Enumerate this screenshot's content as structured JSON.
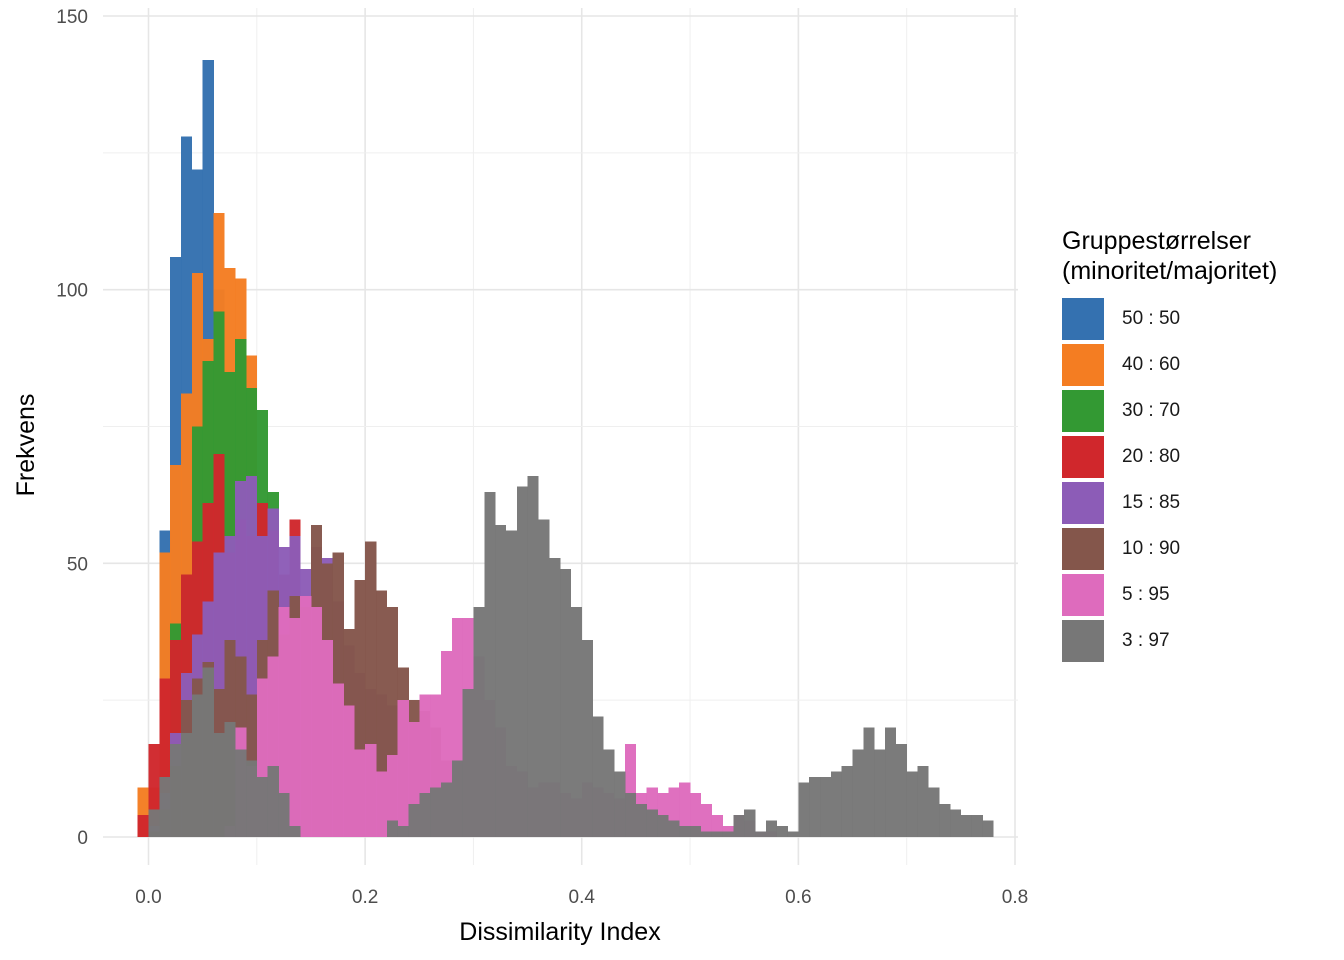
{
  "chart_data": {
    "type": "histogram",
    "xlabel": "Dissimilarity Index",
    "ylabel": "Frekvens",
    "x_ticks": [
      0.0,
      0.2,
      0.4,
      0.6,
      0.8
    ],
    "x_tick_labels": [
      "0.0",
      "0.2",
      "0.4",
      "0.6",
      "0.8"
    ],
    "y_ticks": [
      0,
      50,
      100,
      150
    ],
    "y_tick_labels": [
      "0",
      "50",
      "100",
      "150"
    ],
    "xlim": [
      -0.04,
      0.8
    ],
    "ylim": [
      0,
      150
    ],
    "bin_width": 0.01,
    "grid": true,
    "legend_position": "right",
    "legend_title": "Gruppestørrelser\n(minoritet/majoritet)",
    "series": [
      {
        "name": "50 : 50",
        "color": "#3471b0",
        "bins": [
          [
            0.0,
            0
          ],
          [
            0.01,
            56
          ],
          [
            0.02,
            106
          ],
          [
            0.03,
            128
          ],
          [
            0.04,
            122
          ],
          [
            0.05,
            142
          ],
          [
            0.06,
            100
          ],
          [
            0.07,
            58
          ],
          [
            0.08,
            20
          ],
          [
            0.09,
            5
          ],
          [
            0.1,
            1
          ]
        ]
      },
      {
        "name": "40 : 60",
        "color": "#f47d22",
        "bins": [
          [
            -0.01,
            9
          ],
          [
            0.0,
            9
          ],
          [
            0.01,
            52
          ],
          [
            0.02,
            68
          ],
          [
            0.03,
            81
          ],
          [
            0.04,
            103
          ],
          [
            0.05,
            91
          ],
          [
            0.06,
            114
          ],
          [
            0.07,
            104
          ],
          [
            0.08,
            102
          ],
          [
            0.09,
            88
          ],
          [
            0.1,
            55
          ],
          [
            0.11,
            42
          ],
          [
            0.12,
            20
          ],
          [
            0.13,
            8
          ]
        ]
      },
      {
        "name": "30 : 70",
        "color": "#339933",
        "bins": [
          [
            0.0,
            4
          ],
          [
            0.01,
            10
          ],
          [
            0.02,
            39
          ],
          [
            0.03,
            48
          ],
          [
            0.04,
            75
          ],
          [
            0.05,
            87
          ],
          [
            0.06,
            96
          ],
          [
            0.07,
            85
          ],
          [
            0.08,
            91
          ],
          [
            0.09,
            82
          ],
          [
            0.1,
            78
          ],
          [
            0.11,
            63
          ],
          [
            0.12,
            41
          ],
          [
            0.13,
            31
          ],
          [
            0.14,
            18
          ]
        ]
      },
      {
        "name": "20 : 80",
        "color": "#d0272c",
        "bins": [
          [
            -0.01,
            4
          ],
          [
            0.0,
            17
          ],
          [
            0.01,
            29
          ],
          [
            0.02,
            36
          ],
          [
            0.03,
            48
          ],
          [
            0.04,
            54
          ],
          [
            0.05,
            61
          ],
          [
            0.06,
            70
          ],
          [
            0.07,
            52
          ],
          [
            0.08,
            58
          ],
          [
            0.09,
            55
          ],
          [
            0.1,
            61
          ],
          [
            0.11,
            56
          ],
          [
            0.12,
            48
          ],
          [
            0.13,
            58
          ],
          [
            0.14,
            32
          ],
          [
            0.15,
            20
          ]
        ]
      },
      {
        "name": "15 : 85",
        "color": "#8c5cb7",
        "bins": [
          [
            0.0,
            2
          ],
          [
            0.01,
            8
          ],
          [
            0.02,
            19
          ],
          [
            0.03,
            30
          ],
          [
            0.04,
            37
          ],
          [
            0.05,
            43
          ],
          [
            0.06,
            52
          ],
          [
            0.07,
            55
          ],
          [
            0.08,
            65
          ],
          [
            0.09,
            66
          ],
          [
            0.1,
            55
          ],
          [
            0.11,
            60
          ],
          [
            0.12,
            53
          ],
          [
            0.13,
            55
          ],
          [
            0.14,
            49
          ],
          [
            0.15,
            53
          ],
          [
            0.16,
            51
          ],
          [
            0.17,
            43
          ],
          [
            0.18,
            35
          ],
          [
            0.19,
            30
          ],
          [
            0.2,
            27
          ],
          [
            0.21,
            26
          ],
          [
            0.22,
            24
          ],
          [
            0.23,
            22
          ]
        ]
      },
      {
        "name": "10 : 90",
        "color": "#84564b",
        "bins": [
          [
            0.0,
            1
          ],
          [
            0.01,
            5
          ],
          [
            0.02,
            13
          ],
          [
            0.03,
            25
          ],
          [
            0.04,
            29
          ],
          [
            0.05,
            32
          ],
          [
            0.06,
            27
          ],
          [
            0.07,
            36
          ],
          [
            0.08,
            33
          ],
          [
            0.09,
            26
          ],
          [
            0.1,
            36
          ],
          [
            0.11,
            45
          ],
          [
            0.12,
            37
          ],
          [
            0.13,
            44
          ],
          [
            0.14,
            42
          ],
          [
            0.15,
            57
          ],
          [
            0.16,
            50
          ],
          [
            0.17,
            52
          ],
          [
            0.18,
            38
          ],
          [
            0.19,
            47
          ],
          [
            0.2,
            54
          ],
          [
            0.21,
            45
          ],
          [
            0.22,
            42
          ],
          [
            0.23,
            31
          ],
          [
            0.24,
            25
          ],
          [
            0.25,
            23
          ],
          [
            0.26,
            20
          ],
          [
            0.27,
            14
          ],
          [
            0.28,
            9
          ],
          [
            0.29,
            5
          ],
          [
            0.3,
            3
          ]
        ]
      },
      {
        "name": "5 : 95",
        "color": "#de6bbd",
        "bins": [
          [
            0.07,
            2
          ],
          [
            0.08,
            20
          ],
          [
            0.09,
            13
          ],
          [
            0.1,
            29
          ],
          [
            0.11,
            33
          ],
          [
            0.12,
            42
          ],
          [
            0.13,
            40
          ],
          [
            0.14,
            44
          ],
          [
            0.15,
            42
          ],
          [
            0.16,
            36
          ],
          [
            0.17,
            28
          ],
          [
            0.18,
            24
          ],
          [
            0.19,
            16
          ],
          [
            0.2,
            17
          ],
          [
            0.21,
            12
          ],
          [
            0.22,
            15
          ],
          [
            0.23,
            25
          ],
          [
            0.24,
            21
          ],
          [
            0.25,
            26
          ],
          [
            0.26,
            26
          ],
          [
            0.27,
            34
          ],
          [
            0.28,
            40
          ],
          [
            0.29,
            40
          ],
          [
            0.3,
            33
          ],
          [
            0.31,
            25
          ],
          [
            0.32,
            20
          ],
          [
            0.33,
            13
          ],
          [
            0.34,
            12
          ],
          [
            0.35,
            9
          ],
          [
            0.36,
            10
          ],
          [
            0.37,
            10
          ],
          [
            0.38,
            8
          ],
          [
            0.39,
            7
          ],
          [
            0.4,
            10
          ],
          [
            0.41,
            9
          ],
          [
            0.42,
            8
          ],
          [
            0.43,
            7
          ],
          [
            0.44,
            17
          ],
          [
            0.45,
            8
          ],
          [
            0.46,
            9
          ],
          [
            0.47,
            8
          ],
          [
            0.48,
            9
          ],
          [
            0.49,
            10
          ],
          [
            0.5,
            8
          ],
          [
            0.51,
            6
          ],
          [
            0.52,
            4
          ],
          [
            0.53,
            2
          ],
          [
            0.54,
            4
          ],
          [
            0.55,
            3
          ],
          [
            0.56,
            1
          ],
          [
            0.57,
            1
          ]
        ]
      },
      {
        "name": "3 : 97",
        "color": "#777777",
        "bins": [
          [
            0.0,
            5
          ],
          [
            0.01,
            11
          ],
          [
            0.02,
            17
          ],
          [
            0.03,
            19
          ],
          [
            0.04,
            26
          ],
          [
            0.05,
            31
          ],
          [
            0.06,
            19
          ],
          [
            0.07,
            21
          ],
          [
            0.08,
            16
          ],
          [
            0.09,
            14
          ],
          [
            0.1,
            11
          ],
          [
            0.11,
            13
          ],
          [
            0.12,
            8
          ],
          [
            0.13,
            2
          ],
          [
            0.22,
            3
          ],
          [
            0.23,
            2
          ],
          [
            0.24,
            6
          ],
          [
            0.25,
            8
          ],
          [
            0.26,
            9
          ],
          [
            0.27,
            10
          ],
          [
            0.28,
            14
          ],
          [
            0.29,
            27
          ],
          [
            0.3,
            42
          ],
          [
            0.31,
            63
          ],
          [
            0.32,
            57
          ],
          [
            0.33,
            56
          ],
          [
            0.34,
            64
          ],
          [
            0.35,
            66
          ],
          [
            0.36,
            58
          ],
          [
            0.37,
            51
          ],
          [
            0.38,
            49
          ],
          [
            0.39,
            42
          ],
          [
            0.4,
            36
          ],
          [
            0.41,
            22
          ],
          [
            0.42,
            16
          ],
          [
            0.43,
            12
          ],
          [
            0.44,
            8
          ],
          [
            0.45,
            6
          ],
          [
            0.46,
            5
          ],
          [
            0.47,
            4
          ],
          [
            0.48,
            3
          ],
          [
            0.49,
            2
          ],
          [
            0.5,
            2
          ],
          [
            0.51,
            1
          ],
          [
            0.52,
            1
          ],
          [
            0.53,
            1
          ],
          [
            0.54,
            4
          ],
          [
            0.55,
            5
          ],
          [
            0.56,
            1
          ],
          [
            0.57,
            3
          ],
          [
            0.58,
            2
          ],
          [
            0.59,
            1
          ],
          [
            0.6,
            10
          ],
          [
            0.61,
            11
          ],
          [
            0.62,
            11
          ],
          [
            0.63,
            12
          ],
          [
            0.64,
            13
          ],
          [
            0.65,
            16
          ],
          [
            0.66,
            20
          ],
          [
            0.67,
            16
          ],
          [
            0.68,
            20
          ],
          [
            0.69,
            17
          ],
          [
            0.7,
            12
          ],
          [
            0.71,
            13
          ],
          [
            0.72,
            9
          ],
          [
            0.73,
            6
          ],
          [
            0.74,
            5
          ],
          [
            0.75,
            4
          ],
          [
            0.76,
            4
          ],
          [
            0.77,
            3
          ]
        ]
      }
    ]
  }
}
